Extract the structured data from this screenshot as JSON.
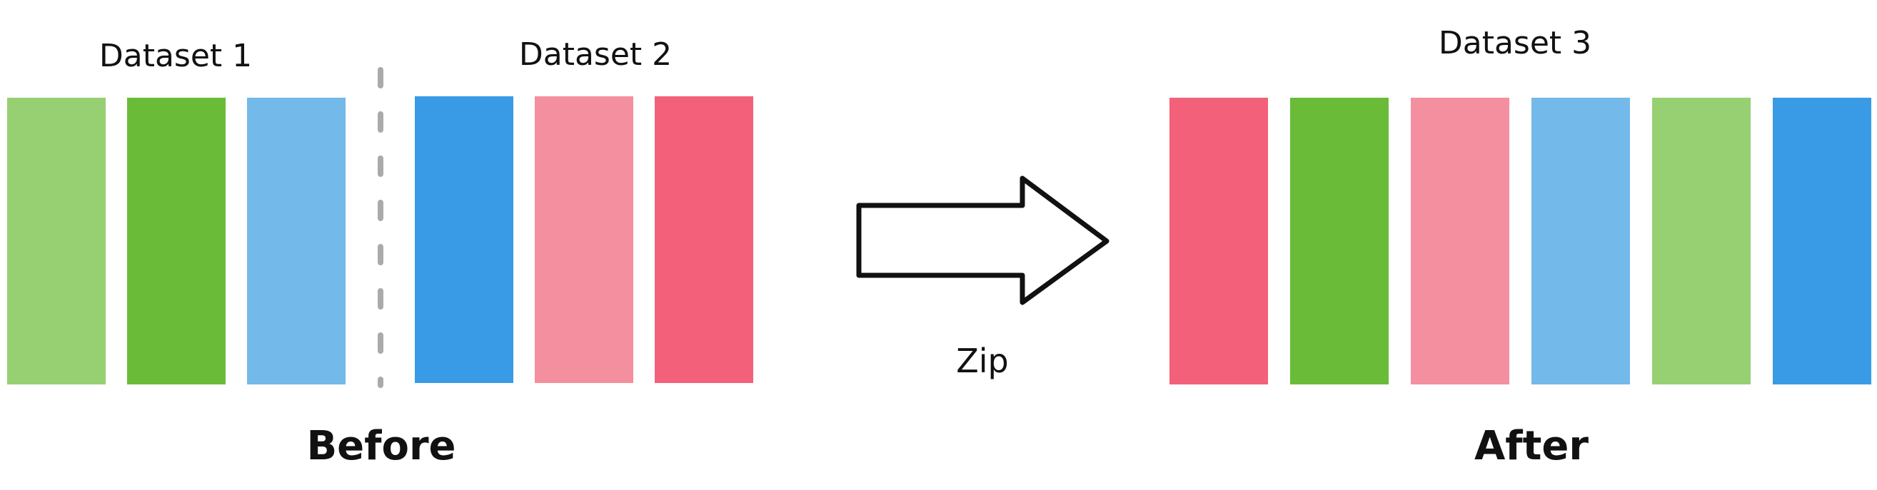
{
  "diagram": {
    "before": {
      "caption": "Before",
      "datasets": [
        {
          "label": "Dataset 1",
          "blocks": [
            "#97d072",
            "#6abc38",
            "#73b9ea"
          ]
        },
        {
          "label": "Dataset 2",
          "blocks": [
            "#399be5",
            "#f48f9f",
            "#f26179"
          ]
        }
      ]
    },
    "operation": {
      "label": "Zip",
      "icon": "right-arrow-icon"
    },
    "after": {
      "caption": "After",
      "dataset": {
        "label": "Dataset 3",
        "blocks": [
          "#f26179",
          "#6abc38",
          "#f48f9f",
          "#73b9ea",
          "#97d072",
          "#399be5"
        ]
      }
    },
    "divider_color": "#aaaaaa"
  }
}
